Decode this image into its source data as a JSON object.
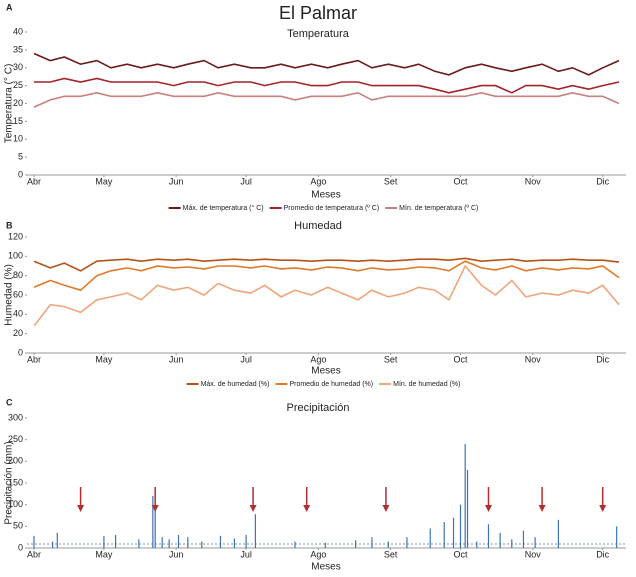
{
  "title": "El Palmar",
  "chart_data": [
    {
      "type": "line",
      "panel_label": "A",
      "title": "Temperatura",
      "xlabel": "Meses",
      "ylabel": "Temperatura (° C)",
      "x": [
        0,
        7,
        13,
        20,
        27,
        33,
        40,
        46,
        53,
        60,
        66,
        73,
        79,
        86,
        93,
        99,
        106,
        112,
        119,
        126,
        132,
        139,
        145,
        152,
        159,
        165,
        172,
        178,
        185,
        192,
        198,
        205,
        211,
        218,
        225,
        231,
        238,
        244,
        251
      ],
      "xlim": [
        -3,
        254
      ],
      "xticks": [
        {
          "value": 0,
          "label": "Abr"
        },
        {
          "value": 30,
          "label": "May"
        },
        {
          "value": 61,
          "label": "Jun"
        },
        {
          "value": 91,
          "label": "Jul"
        },
        {
          "value": 122,
          "label": "Ago"
        },
        {
          "value": 153,
          "label": "Set"
        },
        {
          "value": 183,
          "label": "Oct"
        },
        {
          "value": 214,
          "label": "Nov"
        },
        {
          "value": 244,
          "label": "Dic"
        }
      ],
      "ylim": [
        0,
        40
      ],
      "yticks": [
        0,
        5,
        10,
        15,
        20,
        25,
        30,
        35,
        40
      ],
      "series": [
        {
          "name": "Máx. de temperatura (° C)",
          "color": "#6b1a1a",
          "values": [
            34,
            32,
            33,
            31,
            32,
            30,
            31,
            30,
            31,
            30,
            31,
            32,
            30,
            31,
            30,
            30,
            31,
            30,
            31,
            30,
            31,
            32,
            30,
            31,
            30,
            31,
            29,
            28,
            30,
            31,
            30,
            29,
            30,
            31,
            29,
            30,
            28,
            30,
            32
          ]
        },
        {
          "name": "Promedio de temperatura (º C)",
          "color": "#a3232a",
          "values": [
            26,
            26,
            27,
            26,
            27,
            26,
            26,
            26,
            26,
            25,
            26,
            26,
            25,
            26,
            26,
            25,
            26,
            26,
            25,
            25,
            26,
            26,
            25,
            25,
            25,
            25,
            24,
            23,
            24,
            25,
            25,
            23,
            25,
            25,
            24,
            25,
            24,
            25,
            26
          ]
        },
        {
          "name": "Mín. de temperatura (º C)",
          "color": "#c98080",
          "values": [
            19,
            21,
            22,
            22,
            23,
            22,
            22,
            22,
            23,
            22,
            22,
            22,
            23,
            22,
            22,
            22,
            22,
            21,
            22,
            22,
            22,
            23,
            21,
            22,
            22,
            22,
            22,
            22,
            22,
            23,
            22,
            22,
            22,
            22,
            22,
            23,
            22,
            22,
            20
          ]
        }
      ]
    },
    {
      "type": "line",
      "panel_label": "B",
      "title": "Humedad",
      "xlabel": "Meses",
      "ylabel": "Humedad (%)",
      "x": [
        0,
        7,
        13,
        20,
        27,
        33,
        40,
        46,
        53,
        60,
        66,
        73,
        79,
        86,
        93,
        99,
        106,
        112,
        119,
        126,
        132,
        139,
        145,
        152,
        159,
        165,
        172,
        178,
        185,
        192,
        198,
        205,
        211,
        218,
        225,
        231,
        238,
        244,
        251
      ],
      "xlim": [
        -3,
        254
      ],
      "xticks": [
        {
          "value": 0,
          "label": "Abr"
        },
        {
          "value": 30,
          "label": "May"
        },
        {
          "value": 61,
          "label": "Jun"
        },
        {
          "value": 91,
          "label": "Jul"
        },
        {
          "value": 122,
          "label": "Ago"
        },
        {
          "value": 153,
          "label": "Set"
        },
        {
          "value": 183,
          "label": "Oct"
        },
        {
          "value": 214,
          "label": "Nov"
        },
        {
          "value": 244,
          "label": "Dic"
        }
      ],
      "ylim": [
        0,
        120
      ],
      "yticks": [
        0,
        20,
        40,
        60,
        80,
        100,
        120
      ],
      "series": [
        {
          "name": "Máx. de humedad (%)",
          "color": "#b5531a",
          "values": [
            95,
            88,
            93,
            85,
            95,
            96,
            97,
            95,
            97,
            96,
            97,
            95,
            96,
            97,
            96,
            97,
            96,
            96,
            95,
            96,
            96,
            95,
            96,
            95,
            96,
            97,
            97,
            96,
            98,
            95,
            96,
            97,
            95,
            96,
            96,
            97,
            96,
            96,
            94
          ]
        },
        {
          "name": "Promedio de humedad (%)",
          "color": "#e07a2a",
          "values": [
            68,
            75,
            70,
            65,
            80,
            85,
            88,
            85,
            90,
            88,
            89,
            87,
            90,
            90,
            88,
            90,
            87,
            88,
            86,
            89,
            88,
            85,
            88,
            86,
            87,
            89,
            88,
            85,
            95,
            88,
            86,
            90,
            85,
            88,
            86,
            88,
            87,
            90,
            78
          ]
        },
        {
          "name": "Mín. de humedad (%)",
          "color": "#f0a57a",
          "values": [
            28,
            50,
            48,
            42,
            55,
            58,
            62,
            55,
            70,
            65,
            68,
            60,
            72,
            65,
            62,
            70,
            58,
            65,
            60,
            68,
            62,
            55,
            65,
            58,
            62,
            68,
            65,
            55,
            90,
            70,
            60,
            75,
            58,
            62,
            60,
            65,
            62,
            70,
            50
          ]
        }
      ]
    },
    {
      "type": "bar",
      "panel_label": "C",
      "title": "Precipitación",
      "xlabel": "Meses",
      "ylabel": "Precipitación (mm)",
      "x": [
        0,
        8,
        10,
        30,
        35,
        45,
        51,
        52,
        55,
        58,
        62,
        66,
        72,
        80,
        86,
        91,
        95,
        112,
        125,
        138,
        145,
        152,
        160,
        170,
        176,
        180,
        183,
        185,
        186,
        190,
        195,
        200,
        205,
        210,
        215,
        225,
        250
      ],
      "values": [
        28,
        15,
        35,
        28,
        30,
        20,
        120,
        90,
        25,
        20,
        30,
        25,
        15,
        28,
        22,
        30,
        78,
        15,
        12,
        18,
        25,
        15,
        25,
        45,
        60,
        70,
        100,
        240,
        180,
        15,
        55,
        35,
        20,
        40,
        25,
        65,
        50
      ],
      "color": "#3f73b0",
      "xlim": [
        -3,
        254
      ],
      "xticks": [
        {
          "value": 0,
          "label": "Abr"
        },
        {
          "value": 30,
          "label": "May"
        },
        {
          "value": 61,
          "label": "Jun"
        },
        {
          "value": 91,
          "label": "Jul"
        },
        {
          "value": 122,
          "label": "Ago"
        },
        {
          "value": 153,
          "label": "Set"
        },
        {
          "value": 183,
          "label": "Oct"
        },
        {
          "value": 214,
          "label": "Nov"
        },
        {
          "value": 244,
          "label": "Dic"
        }
      ],
      "ylim": [
        0,
        300
      ],
      "yticks": [
        0,
        50,
        100,
        150,
        200,
        250,
        300
      ]
    }
  ]
}
